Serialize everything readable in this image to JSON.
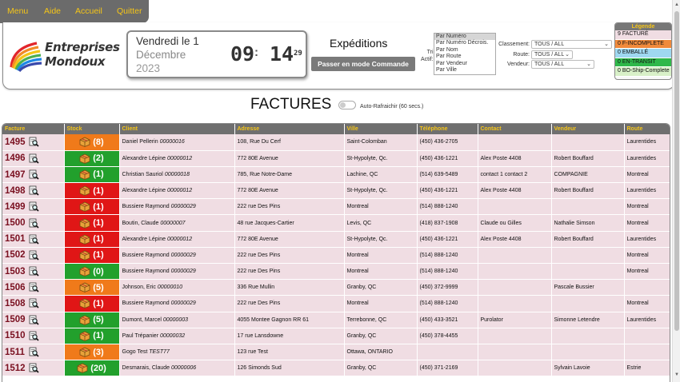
{
  "menu": [
    "Menu",
    "Aide",
    "Accueil",
    "Quitter"
  ],
  "logo": {
    "line1": "Entreprises",
    "line2": "Mondoux"
  },
  "datetime": {
    "line1": "Vendredi le 1",
    "line2": "Décembre",
    "line3": "2023",
    "hours": "09",
    "separator": ":",
    "minutes": "14",
    "seconds": "29"
  },
  "expeditions": {
    "title": "Expéditions",
    "mode_button": "Passer en mode Commande"
  },
  "tri": {
    "label_line1": "Tri",
    "label_line2": "Actif:",
    "options": [
      "Par Numéro",
      "Par Numéro Décrois.",
      "Par Nom",
      "Par Route",
      "Par Vendeur",
      "Par Ville"
    ],
    "selected": "Par Numéro"
  },
  "filters": {
    "classement": {
      "label": "Classement:",
      "value": "TOUS / ALL"
    },
    "route": {
      "label": "Route:",
      "value": "TOUS / ALL"
    },
    "vendeur": {
      "label": "Vendeur:",
      "value": "TOUS / ALL"
    }
  },
  "legend": {
    "title": "Légende",
    "items": [
      {
        "label": "9 FACTURÉ",
        "color": "#f0dde3"
      },
      {
        "label": "0 F-INCOMPLETE",
        "color": "#f08a3c"
      },
      {
        "label": "0 EMBALLÉ",
        "color": "#9fd8f0"
      },
      {
        "label": "0 EN-TRANSIT",
        "color": "#2fb84a"
      },
      {
        "label": "0 BO-Ship-Complete",
        "color": "#d8f0c8"
      }
    ]
  },
  "page_title": "FACTURES",
  "auto_refresh_label": "Auto-Rafraichir (60 secs.)",
  "columns": [
    "Facture",
    "Stock",
    "Client",
    "Adresse",
    "Ville",
    "Téléphone",
    "Contact",
    "Vendeur",
    "Route"
  ],
  "stock_colors": {
    "orange": "#f07a1a",
    "green": "#22a02c",
    "red": "#e01616"
  },
  "rows": [
    {
      "facture": "1495",
      "stock": "(8)",
      "stock_color": "orange",
      "client": "Daniel Pellerin",
      "client_code": "00000016",
      "adresse": "108, Rue Du Cerf",
      "ville": "Saint-Colomban",
      "telephone": "(450) 436-2705",
      "contact": "",
      "vendeur": "",
      "route": "Laurentides"
    },
    {
      "facture": "1496",
      "stock": "(2)",
      "stock_color": "green",
      "client": "Alexandre Lépine",
      "client_code": "00000012",
      "adresse": "772 80E Avenue",
      "ville": "St-Hypolyte, Qc.",
      "telephone": "(450) 436-1221",
      "contact": "Alex Poste 4408",
      "vendeur": "Robert Bouffard",
      "route": "Laurentides"
    },
    {
      "facture": "1497",
      "stock": "(1)",
      "stock_color": "green",
      "client": "Christian Sauriol",
      "client_code": "00000018",
      "adresse": "785, Rue Notre-Dame",
      "ville": "Lachine, QC",
      "telephone": "(514) 639-5489",
      "contact": "contact 1 contact 2",
      "vendeur": "COMPAGNIE",
      "route": "Montreal"
    },
    {
      "facture": "1498",
      "stock": "(1)",
      "stock_color": "red",
      "client": "Alexandre Lépine",
      "client_code": "00000012",
      "adresse": "772 80E Avenue",
      "ville": "St-Hypolyte, Qc.",
      "telephone": "(450) 436-1221",
      "contact": "Alex Poste 4408",
      "vendeur": "Robert Bouffard",
      "route": "Laurentides"
    },
    {
      "facture": "1499",
      "stock": "(1)",
      "stock_color": "red",
      "client": "Bussiere Raymond",
      "client_code": "00000029",
      "adresse": "222 rue Des Pins",
      "ville": "Montreal",
      "telephone": "(514) 888-1240",
      "contact": "",
      "vendeur": "",
      "route": "Montreal"
    },
    {
      "facture": "1500",
      "stock": "(1)",
      "stock_color": "red",
      "client": "Boutin, Claude",
      "client_code": "00000007",
      "adresse": "48 rue Jacques-Cartier",
      "ville": "Levis, QC",
      "telephone": "(418) 837-1908",
      "contact": "Claude ou Gilles",
      "vendeur": "Nathalie Simson",
      "route": "Montreal"
    },
    {
      "facture": "1501",
      "stock": "(1)",
      "stock_color": "red",
      "client": "Alexandre Lépine",
      "client_code": "00000012",
      "adresse": "772 80E Avenue",
      "ville": "St-Hypolyte, Qc.",
      "telephone": "(450) 436-1221",
      "contact": "Alex Poste 4408",
      "vendeur": "Robert Bouffard",
      "route": "Laurentides"
    },
    {
      "facture": "1502",
      "stock": "(1)",
      "stock_color": "red",
      "client": "Bussiere Raymond",
      "client_code": "00000029",
      "adresse": "222 rue Des Pins",
      "ville": "Montreal",
      "telephone": "(514) 888-1240",
      "contact": "",
      "vendeur": "",
      "route": "Montreal"
    },
    {
      "facture": "1503",
      "stock": "(0)",
      "stock_color": "green",
      "client": "Bussiere Raymond",
      "client_code": "00000029",
      "adresse": "222 rue Des Pins",
      "ville": "Montreal",
      "telephone": "(514) 888-1240",
      "contact": "",
      "vendeur": "",
      "route": "Montreal"
    },
    {
      "facture": "1506",
      "stock": "(5)",
      "stock_color": "orange",
      "client": "Johnson, Eric",
      "client_code": "00000010",
      "adresse": "336 Rue Mullin",
      "ville": "Granby, QC",
      "telephone": "(450) 372-9999",
      "contact": "",
      "vendeur": "Pascale Bussier",
      "route": ""
    },
    {
      "facture": "1508",
      "stock": "(1)",
      "stock_color": "red",
      "client": "Bussiere Raymond",
      "client_code": "00000029",
      "adresse": "222 rue Des Pins",
      "ville": "Montreal",
      "telephone": "(514) 888-1240",
      "contact": "",
      "vendeur": "",
      "route": "Montreal"
    },
    {
      "facture": "1509",
      "stock": "(5)",
      "stock_color": "green",
      "client": "Dumont, Marcel",
      "client_code": "00000003",
      "adresse": "4055 Montee Gagnon RR 61",
      "ville": "Terrebonne, QC",
      "telephone": "(450) 433-3521",
      "contact": "Purolator",
      "vendeur": "Simonne Letendre",
      "route": "Laurentides"
    },
    {
      "facture": "1510",
      "stock": "(1)",
      "stock_color": "green",
      "client": "Paul Trépanier",
      "client_code": "00000032",
      "adresse": "17 rue Lansdowne",
      "ville": "Granby, QC",
      "telephone": "(450) 378-4455",
      "contact": "",
      "vendeur": "",
      "route": ""
    },
    {
      "facture": "1511",
      "stock": "(3)",
      "stock_color": "orange",
      "client": "Gogo Test",
      "client_code": "TEST77",
      "adresse": "123 rue Test",
      "ville": "Ottawa, ONTARIO",
      "telephone": "",
      "contact": "",
      "vendeur": "",
      "route": ""
    },
    {
      "facture": "1512",
      "stock": "(20)",
      "stock_color": "green",
      "client": "Desmarais, Claude",
      "client_code": "00000006",
      "adresse": "126 Simonds Sud",
      "ville": "Granby, QC",
      "telephone": "(450) 371-2169",
      "contact": "",
      "vendeur": "Sylvain Lavoie",
      "route": "Estrie"
    }
  ]
}
